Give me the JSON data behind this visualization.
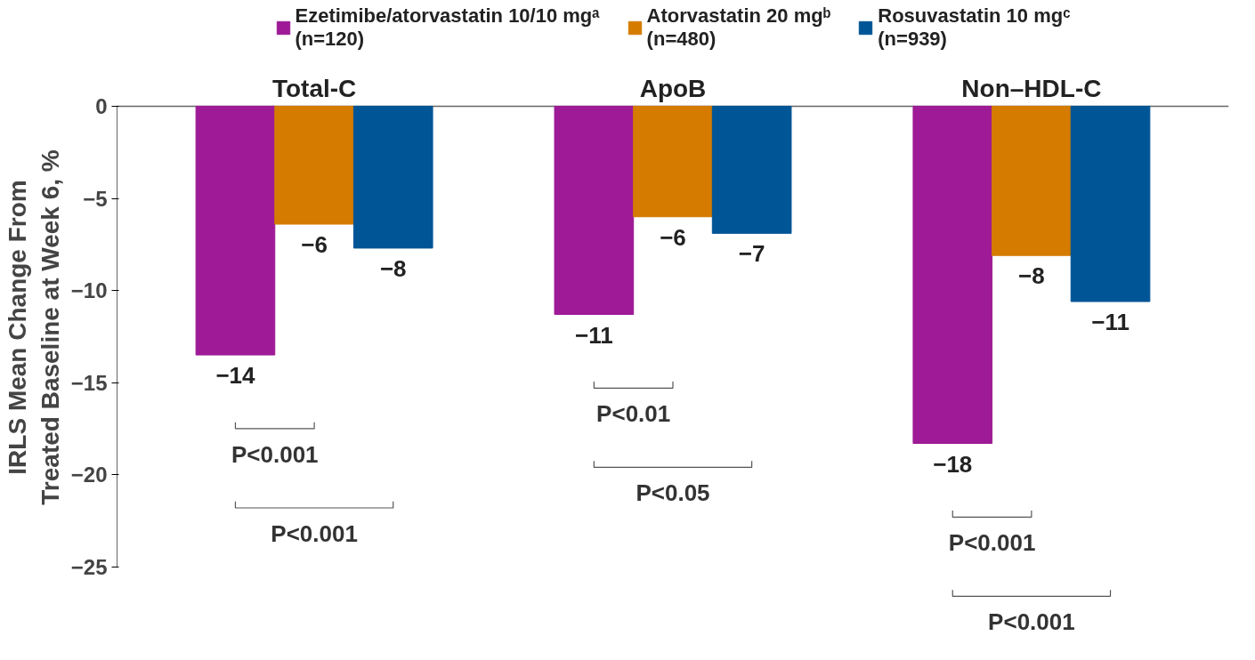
{
  "chart_data": {
    "type": "bar",
    "categories": [
      "Total-C",
      "ApoB",
      "Non–HDL-C"
    ],
    "ylabel": "IRLS Mean Change From\nTreated Baseline at Week 6, %",
    "series": [
      {
        "name": "Ezetimibe/atorvastatin 10/10 mgᵃ\n(n=120)",
        "color": "#9e1a96",
        "values": [
          -13.5,
          -11.3,
          -18.3
        ],
        "value_labels": [
          "−14",
          "−11",
          "−18"
        ]
      },
      {
        "name": "Atorvastatin 20 mgᵇ\n(n=480)",
        "color": "#d47b00",
        "values": [
          -6.4,
          -6.0,
          -8.1
        ],
        "value_labels": [
          "−6",
          "−6",
          "−8"
        ]
      },
      {
        "name": "Rosuvastatin 10 mgᶜ\n(n=939)",
        "color": "#005596",
        "values": [
          -7.7,
          -6.9,
          -10.6
        ],
        "value_labels": [
          "−8",
          "−7",
          "−11"
        ]
      }
    ],
    "ylim": [
      -25,
      0
    ],
    "yticks": [
      0,
      -5,
      -10,
      -15,
      -20,
      -25
    ],
    "grid": false,
    "legend": "top",
    "annotations": [
      "P<0.001",
      "P<0.001",
      "P<0.01",
      "P<0.05",
      "P<0.001",
      "P<0.001"
    ]
  }
}
